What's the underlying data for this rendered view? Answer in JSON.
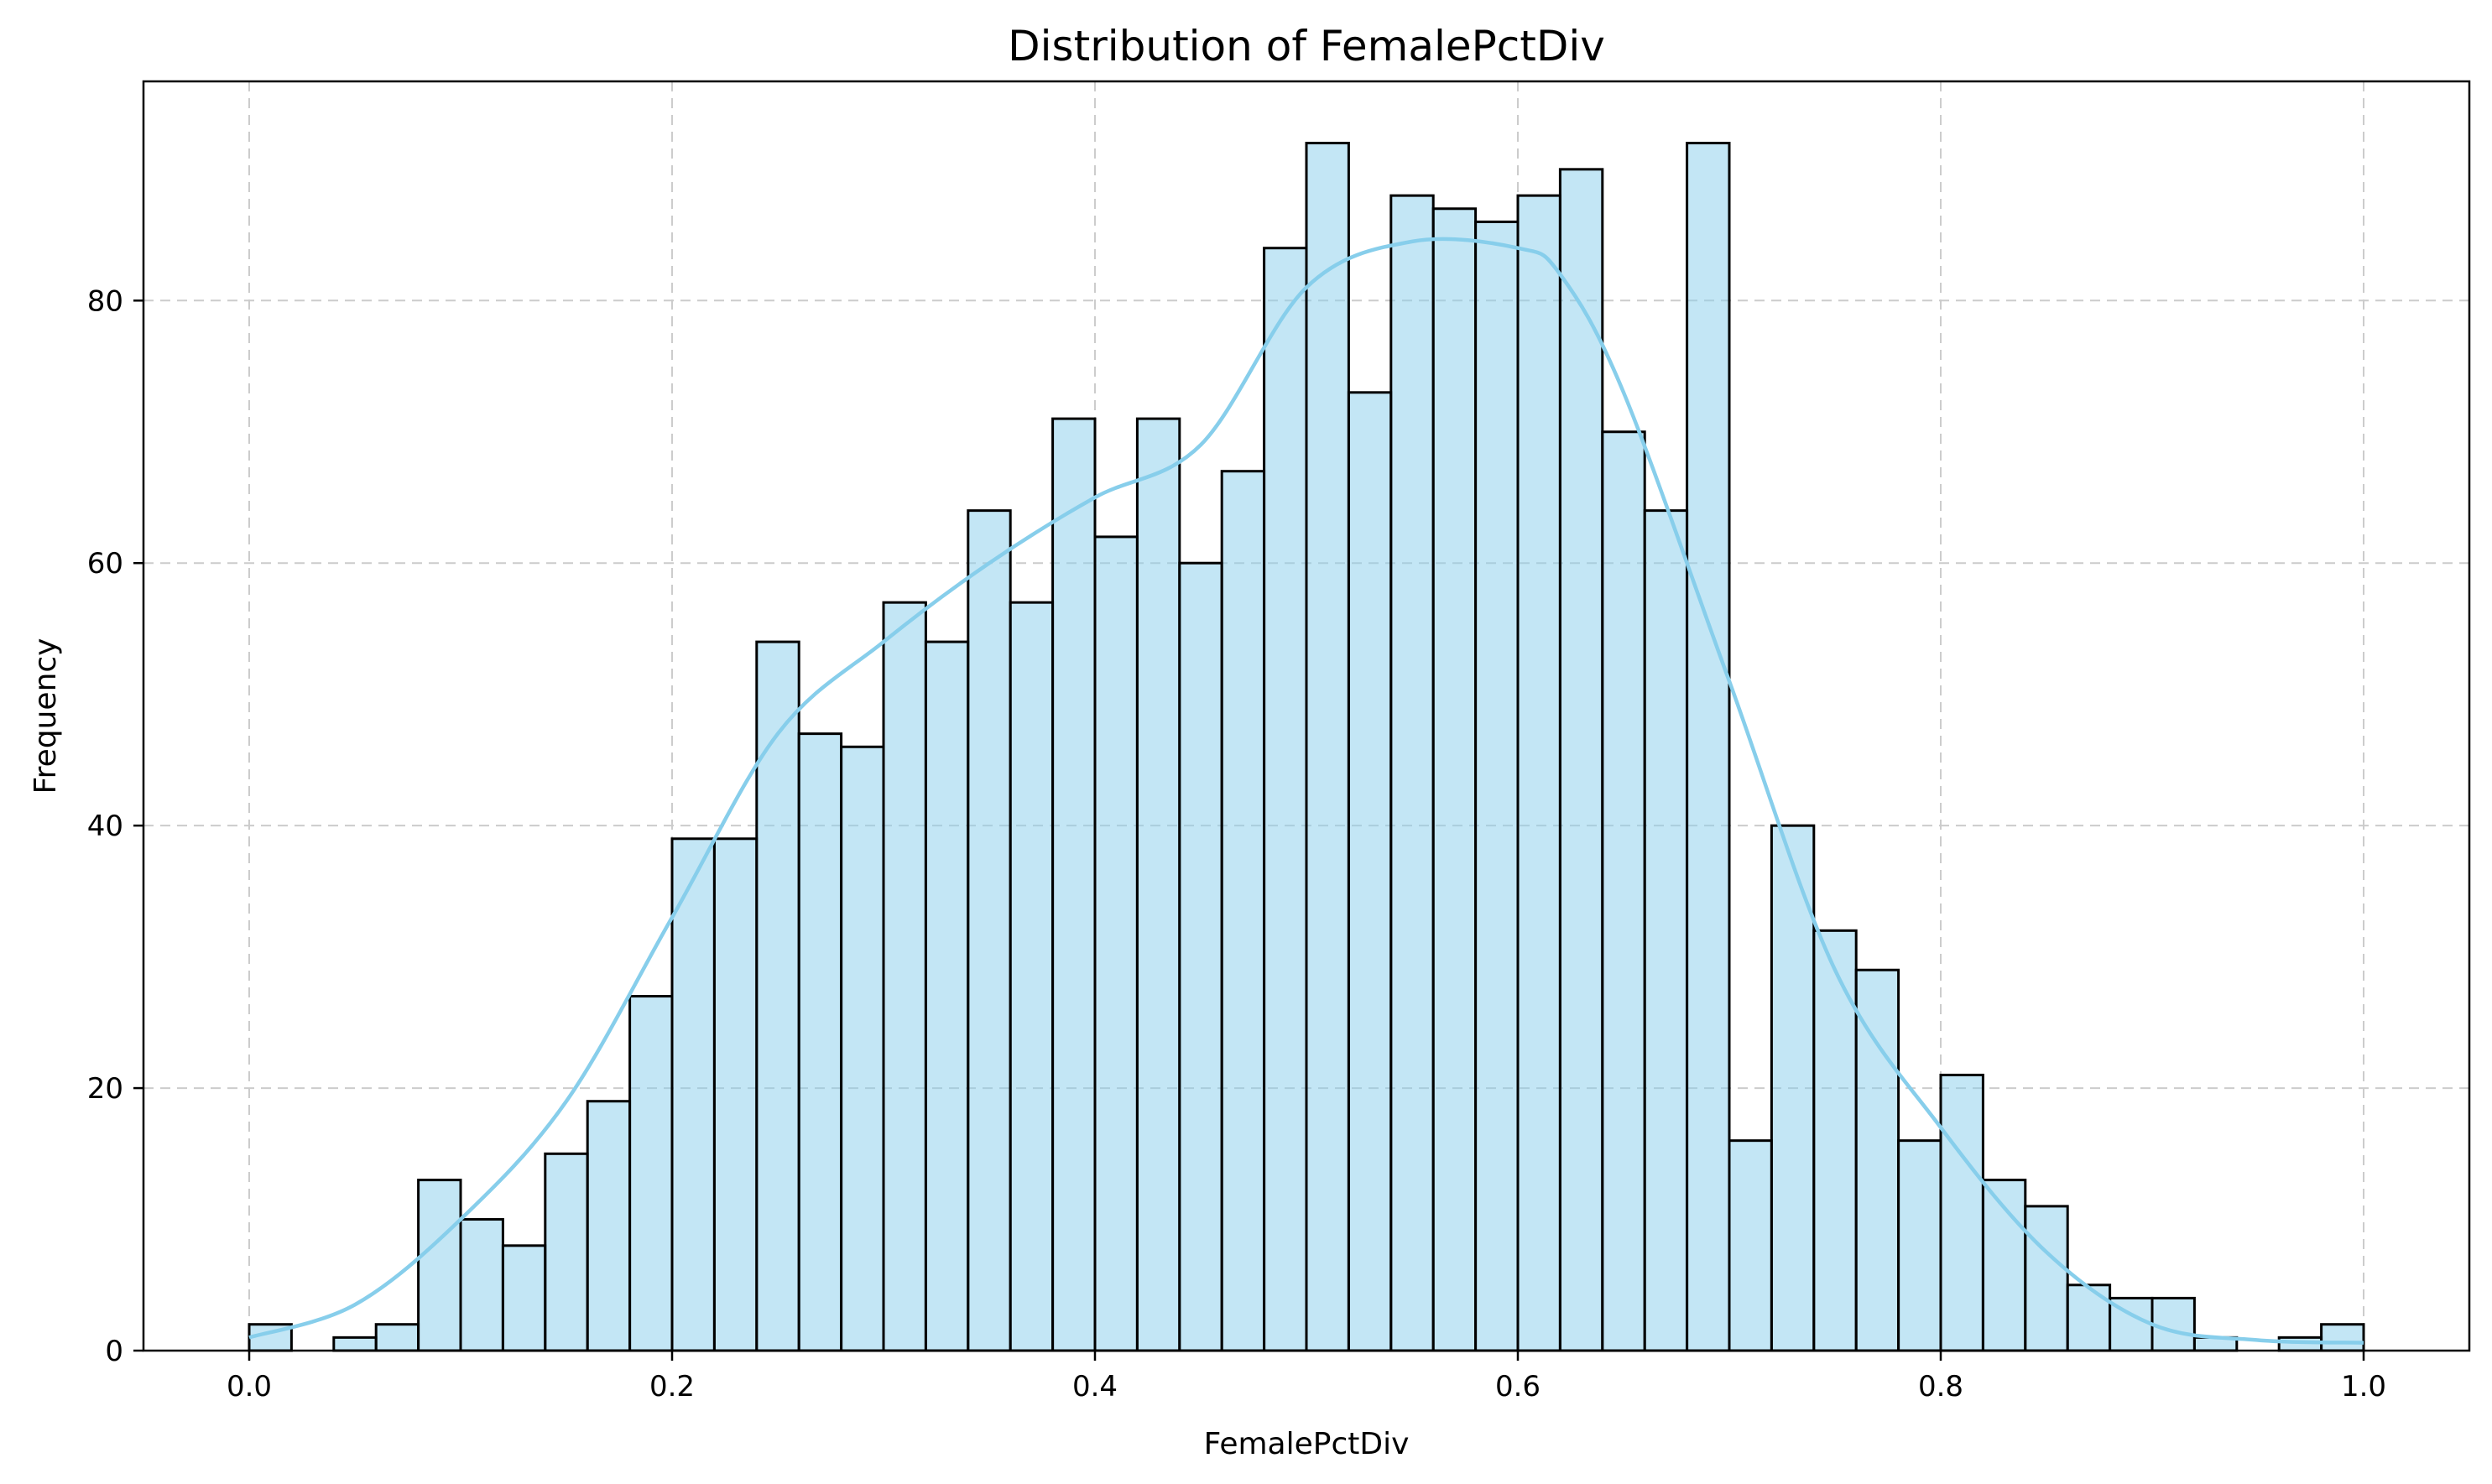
{
  "chart_data": {
    "type": "bar",
    "subtype": "histogram",
    "title": "Distribution of FemalePctDiv",
    "xlabel": "FemalePctDiv",
    "ylabel": "Frequency",
    "xlim": [
      -0.05,
      1.05
    ],
    "ylim": [
      0,
      96.7
    ],
    "xticks": [
      "0.0",
      "0.2",
      "0.4",
      "0.6",
      "0.8",
      "1.0"
    ],
    "xtick_values": [
      0.0,
      0.2,
      0.4,
      0.6,
      0.8,
      1.0
    ],
    "yticks": [
      "0",
      "20",
      "40",
      "60",
      "80"
    ],
    "ytick_values": [
      0,
      20,
      40,
      60,
      80
    ],
    "grid": true,
    "bin_start": 0.0,
    "bin_width": 0.02,
    "values": [
      2,
      0,
      1,
      2,
      13,
      10,
      8,
      15,
      19,
      27,
      39,
      39,
      54,
      47,
      46,
      57,
      54,
      64,
      57,
      71,
      62,
      71,
      60,
      67,
      84,
      92,
      73,
      88,
      87,
      86,
      88,
      90,
      70,
      64,
      92,
      16,
      40,
      32,
      29,
      16,
      21,
      13,
      11,
      5,
      4,
      4,
      1,
      0,
      1,
      2
    ],
    "kde": {
      "x": [
        0.0,
        0.05,
        0.1,
        0.15,
        0.2,
        0.25,
        0.3,
        0.35,
        0.4,
        0.45,
        0.5,
        0.55,
        0.6,
        0.62,
        0.65,
        0.7,
        0.75,
        0.8,
        0.85,
        0.9,
        0.95,
        1.0
      ],
      "y": [
        1,
        3.5,
        10,
        19,
        33,
        47,
        54,
        60,
        65,
        69,
        81,
        84.5,
        84,
        82,
        73,
        51,
        29,
        17,
        7.5,
        2,
        0.8,
        0.6
      ]
    },
    "colors": {
      "bar_fill": "#87CEEB",
      "bar_edge": "#000000",
      "kde_line": "#87CEEB"
    }
  }
}
